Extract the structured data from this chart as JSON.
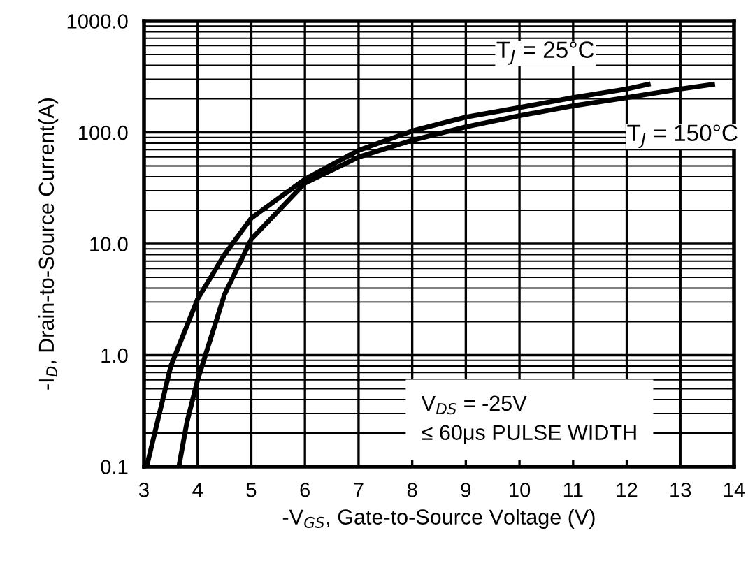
{
  "chart_data": {
    "type": "line",
    "xlabel": "-V$_{GS}$, Gate-to-Source Voltage (V)",
    "ylabel": "-I$_{D}$, Drain-to-Source Current(A)",
    "log": "y",
    "grid": true,
    "legend": false,
    "marker": "none",
    "line_style": "solid",
    "xlim": [
      3,
      14
    ],
    "xticks": [
      3,
      4,
      5,
      6,
      7,
      8,
      9,
      10,
      11,
      12,
      13,
      14
    ],
    "ylim": [
      0.1,
      1000
    ],
    "yticks": [
      {
        "value": 0.1,
        "label": "0.1"
      },
      {
        "value": 1,
        "label": "1.0"
      },
      {
        "value": 10,
        "label": "10.0"
      },
      {
        "value": 100,
        "label": "100.0"
      },
      {
        "value": 1000,
        "label": "1000.0"
      }
    ],
    "series": [
      {
        "name": "T$_{J}$ = 25°C",
        "color": "#000000",
        "x": [
          3.05,
          3.5,
          4,
          4.5,
          5,
          6,
          7,
          8,
          9,
          10,
          11,
          12,
          12.4
        ],
        "values": [
          0.1,
          0.8,
          3.2,
          8,
          17,
          38,
          69,
          103,
          137,
          167,
          205,
          245,
          270
        ]
      },
      {
        "name": "T$_{J}$ = 150°C",
        "color": "#000000",
        "x": [
          3.65,
          3.8,
          4,
          4.5,
          5,
          6,
          7,
          8,
          9,
          10,
          11,
          12,
          13,
          13.6
        ],
        "values": [
          0.1,
          0.25,
          0.6,
          3.5,
          11,
          35,
          60,
          85,
          112,
          141,
          173,
          205,
          245,
          270
        ]
      }
    ],
    "annotations": [
      "V$_{DS}$ = -25V\n≤ 60μs PULSE WIDTH"
    ]
  }
}
